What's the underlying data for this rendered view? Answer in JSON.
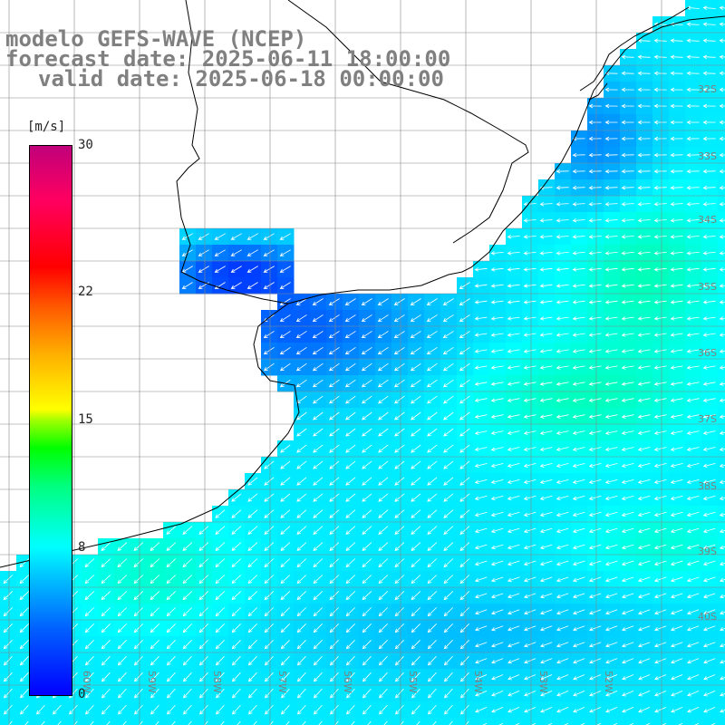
{
  "title": {
    "line1": "modelo GEFS-WAVE (NCEP)",
    "line2": "forecast date: 2025-06-11 18:00:00",
    "line3": "valid date: 2025-06-18 00:00:00"
  },
  "colorbar": {
    "units": "[m/s]",
    "min": 0,
    "max": 30,
    "ticks": [
      {
        "label": "0",
        "value": 0
      },
      {
        "label": "8",
        "value": 8
      },
      {
        "label": "15",
        "value": 15
      },
      {
        "label": "22",
        "value": 22
      },
      {
        "label": "30",
        "value": 30
      }
    ]
  },
  "lat_labels": [
    "32S",
    "33S",
    "34S",
    "35S",
    "36S",
    "37S",
    "38S",
    "39S",
    "40S"
  ],
  "lon_labels": [
    "60W",
    "59W",
    "58W",
    "57W",
    "56W",
    "55W",
    "54W",
    "53W",
    "52W"
  ],
  "colors": {
    "land": "#ffffff",
    "coast": "#000000",
    "grid": "#888888",
    "arrow": "#ffffff",
    "label": "#808080"
  }
}
